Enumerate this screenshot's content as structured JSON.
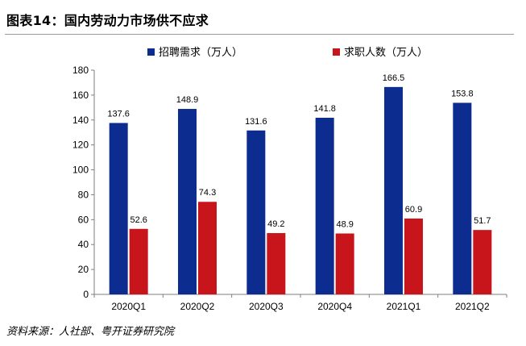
{
  "header": {
    "title": "图表14：国内劳动力市场供不应求"
  },
  "footer": {
    "source": "资料来源：人社部、粤开证券研究院"
  },
  "colors": {
    "series1": "#0c2d8f",
    "series2": "#c8151c",
    "axis": "#7f7f7f"
  },
  "chart_data": {
    "type": "bar",
    "title": "图表14：国内劳动力市场供不应求",
    "categories": [
      "2020Q1",
      "2020Q2",
      "2020Q3",
      "2020Q4",
      "2021Q1",
      "2021Q2"
    ],
    "series": [
      {
        "name": "招聘需求（万人）",
        "values": [
          137.6,
          148.9,
          131.6,
          141.8,
          166.5,
          153.8
        ],
        "labels": [
          "137.6",
          "148.9",
          "131.6",
          "141.8",
          "166.5",
          "153.8"
        ]
      },
      {
        "name": "求职人数（万人）",
        "values": [
          52.6,
          74.3,
          49.2,
          48.9,
          60.9,
          51.7
        ],
        "labels": [
          "52.6",
          "74.3",
          "49.2",
          "48.9",
          "60.9",
          "51.7"
        ]
      }
    ],
    "ylim": [
      0,
      180
    ],
    "yticks": [
      "0",
      "20",
      "40",
      "60",
      "80",
      "100",
      "120",
      "140",
      "160",
      "180"
    ],
    "xlabel": "",
    "ylabel": "",
    "grid": false,
    "legend": "top-center"
  }
}
